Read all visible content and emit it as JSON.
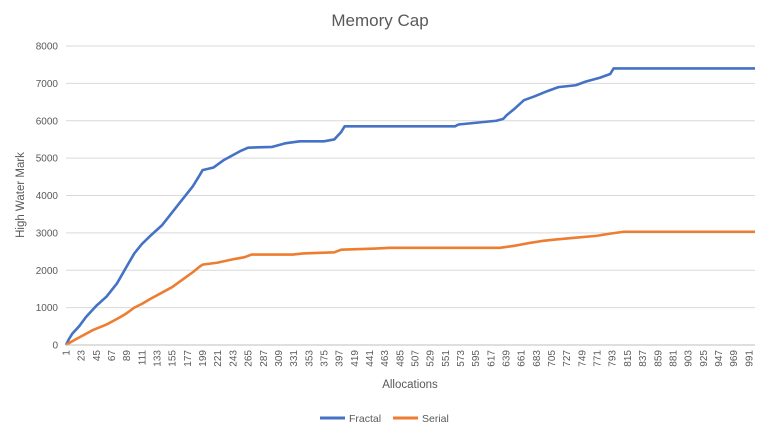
{
  "chart_data": {
    "type": "line",
    "title": "Memory Cap",
    "xlabel": "Allocations",
    "ylabel": "High Water Mark",
    "ylim": [
      0,
      8000
    ],
    "y_ticks": [
      "0",
      "1000",
      "2000",
      "3000",
      "4000",
      "5000",
      "6000",
      "7000",
      "8000"
    ],
    "xlim": [
      1,
      1000
    ],
    "x_tick_start": 1,
    "x_tick_step": 22,
    "grid": true,
    "legend_position": "bottom",
    "series": [
      {
        "name": "Fractal",
        "color": "#4472c4",
        "points": [
          [
            1,
            0
          ],
          [
            5,
            150
          ],
          [
            10,
            300
          ],
          [
            20,
            500
          ],
          [
            30,
            750
          ],
          [
            45,
            1050
          ],
          [
            60,
            1300
          ],
          [
            75,
            1650
          ],
          [
            89,
            2100
          ],
          [
            100,
            2450
          ],
          [
            111,
            2700
          ],
          [
            125,
            2950
          ],
          [
            140,
            3200
          ],
          [
            155,
            3550
          ],
          [
            170,
            3900
          ],
          [
            185,
            4250
          ],
          [
            195,
            4550
          ],
          [
            199,
            4680
          ],
          [
            215,
            4750
          ],
          [
            230,
            4950
          ],
          [
            245,
            5100
          ],
          [
            255,
            5200
          ],
          [
            265,
            5280
          ],
          [
            300,
            5300
          ],
          [
            320,
            5400
          ],
          [
            340,
            5450
          ],
          [
            375,
            5450
          ],
          [
            390,
            5500
          ],
          [
            400,
            5700
          ],
          [
            405,
            5850
          ],
          [
            565,
            5850
          ],
          [
            570,
            5900
          ],
          [
            625,
            6000
          ],
          [
            635,
            6050
          ],
          [
            640,
            6150
          ],
          [
            650,
            6300
          ],
          [
            665,
            6550
          ],
          [
            680,
            6650
          ],
          [
            700,
            6800
          ],
          [
            715,
            6900
          ],
          [
            740,
            6950
          ],
          [
            755,
            7050
          ],
          [
            775,
            7150
          ],
          [
            790,
            7250
          ],
          [
            795,
            7400
          ],
          [
            1000,
            7400
          ]
        ]
      },
      {
        "name": "Serial",
        "color": "#ed7d31",
        "points": [
          [
            1,
            0
          ],
          [
            10,
            100
          ],
          [
            20,
            200
          ],
          [
            40,
            400
          ],
          [
            60,
            550
          ],
          [
            70,
            650
          ],
          [
            80,
            750
          ],
          [
            89,
            850
          ],
          [
            100,
            1000
          ],
          [
            111,
            1100
          ],
          [
            125,
            1250
          ],
          [
            140,
            1400
          ],
          [
            155,
            1550
          ],
          [
            170,
            1750
          ],
          [
            185,
            1950
          ],
          [
            195,
            2100
          ],
          [
            199,
            2150
          ],
          [
            220,
            2200
          ],
          [
            245,
            2300
          ],
          [
            260,
            2350
          ],
          [
            270,
            2420
          ],
          [
            330,
            2420
          ],
          [
            345,
            2450
          ],
          [
            390,
            2480
          ],
          [
            400,
            2550
          ],
          [
            450,
            2580
          ],
          [
            470,
            2600
          ],
          [
            630,
            2600
          ],
          [
            650,
            2650
          ],
          [
            670,
            2720
          ],
          [
            690,
            2780
          ],
          [
            710,
            2820
          ],
          [
            740,
            2870
          ],
          [
            770,
            2920
          ],
          [
            790,
            2980
          ],
          [
            810,
            3030
          ],
          [
            1000,
            3030
          ]
        ]
      }
    ]
  }
}
